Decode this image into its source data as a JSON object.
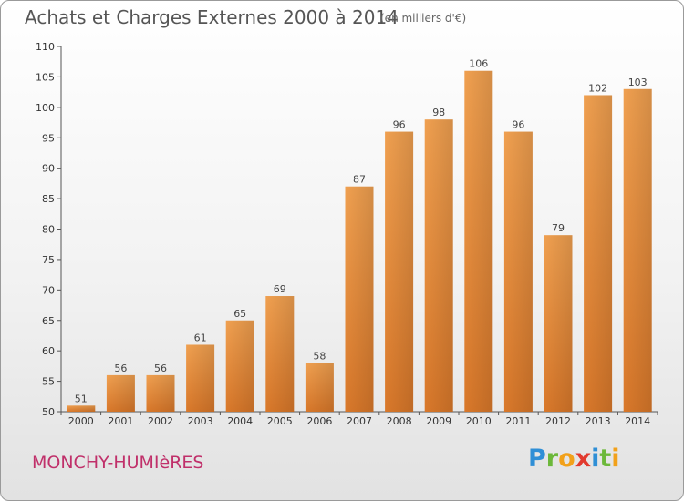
{
  "header": {
    "title": "Achats et Charges Externes 2000 à 2014",
    "subtitle": "(en milliers d'€)"
  },
  "footer": {
    "place": "MONCHY-HUMIèRES",
    "brand_letters": [
      {
        "ch": "P",
        "color": "#2f8fd6"
      },
      {
        "ch": "r",
        "color": "#6cb83a"
      },
      {
        "ch": "o",
        "color": "#f2a11a"
      },
      {
        "ch": "x",
        "color": "#e23a2e"
      },
      {
        "ch": "i",
        "color": "#2f8fd6"
      },
      {
        "ch": "t",
        "color": "#6cb83a"
      },
      {
        "ch": "i",
        "color": "#f2a11a"
      }
    ]
  },
  "chart_data": {
    "type": "bar",
    "title": "Achats et Charges Externes 2000 à 2014",
    "subtitle": "(en milliers d'€)",
    "categories": [
      "2000",
      "2001",
      "2002",
      "2003",
      "2004",
      "2005",
      "2006",
      "2007",
      "2008",
      "2009",
      "2010",
      "2011",
      "2012",
      "2013",
      "2014"
    ],
    "values": [
      51,
      56,
      56,
      61,
      65,
      69,
      58,
      87,
      96,
      98,
      106,
      96,
      79,
      102,
      103
    ],
    "ylim": [
      50,
      110
    ],
    "yticks": [
      50,
      55,
      60,
      65,
      70,
      75,
      80,
      85,
      90,
      95,
      100,
      105,
      110
    ],
    "grid": false,
    "bar_color": "#f0a050",
    "bar_color_dark": "#d9782a"
  }
}
